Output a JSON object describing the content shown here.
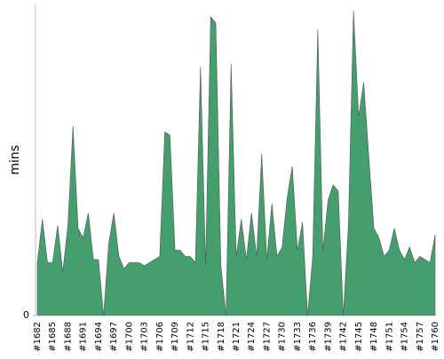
{
  "chart_data": {
    "type": "area",
    "y_label": "mins",
    "categories": [
      "#1682",
      null,
      null,
      "#1685",
      null,
      null,
      "#1688",
      null,
      null,
      "#1691",
      null,
      null,
      "#1694",
      null,
      null,
      "#1697",
      null,
      null,
      "#1700",
      null,
      null,
      "#1703",
      null,
      null,
      "#1706",
      null,
      null,
      "#1709",
      null,
      null,
      "#1712",
      null,
      null,
      "#1715",
      null,
      null,
      "#1718",
      null,
      null,
      "#1721",
      null,
      null,
      "#1724",
      null,
      null,
      "#1727",
      null,
      null,
      "#1730",
      null,
      null,
      "#1733",
      null,
      null,
      "#1736",
      null,
      null,
      "#1739",
      null,
      null,
      "#1742",
      null,
      null,
      "#1745",
      null,
      null,
      "#1748",
      null,
      null,
      "#1751",
      null,
      null,
      "#1754",
      null,
      null,
      "#1757",
      null,
      null,
      "#1760"
    ],
    "values": [
      17,
      31,
      17,
      17,
      29,
      14,
      29,
      61,
      28,
      25,
      33,
      18,
      18,
      0,
      23,
      33,
      19,
      15,
      17,
      17,
      17,
      16,
      17,
      18,
      19,
      59,
      58,
      21,
      21,
      19,
      19,
      17,
      80,
      16,
      96,
      94,
      16,
      0,
      81,
      19,
      31,
      18,
      33,
      19,
      52,
      18,
      36,
      19,
      22,
      38,
      48,
      21,
      30,
      0,
      19,
      92,
      21,
      37,
      42,
      40,
      0,
      29,
      98,
      64,
      75,
      51,
      28,
      25,
      19,
      21,
      28,
      21,
      18,
      22,
      17,
      19,
      18,
      17,
      26
    ],
    "color": "#459e6e",
    "ylim": [
      0,
      100
    ],
    "yticks": [
      0
    ]
  }
}
